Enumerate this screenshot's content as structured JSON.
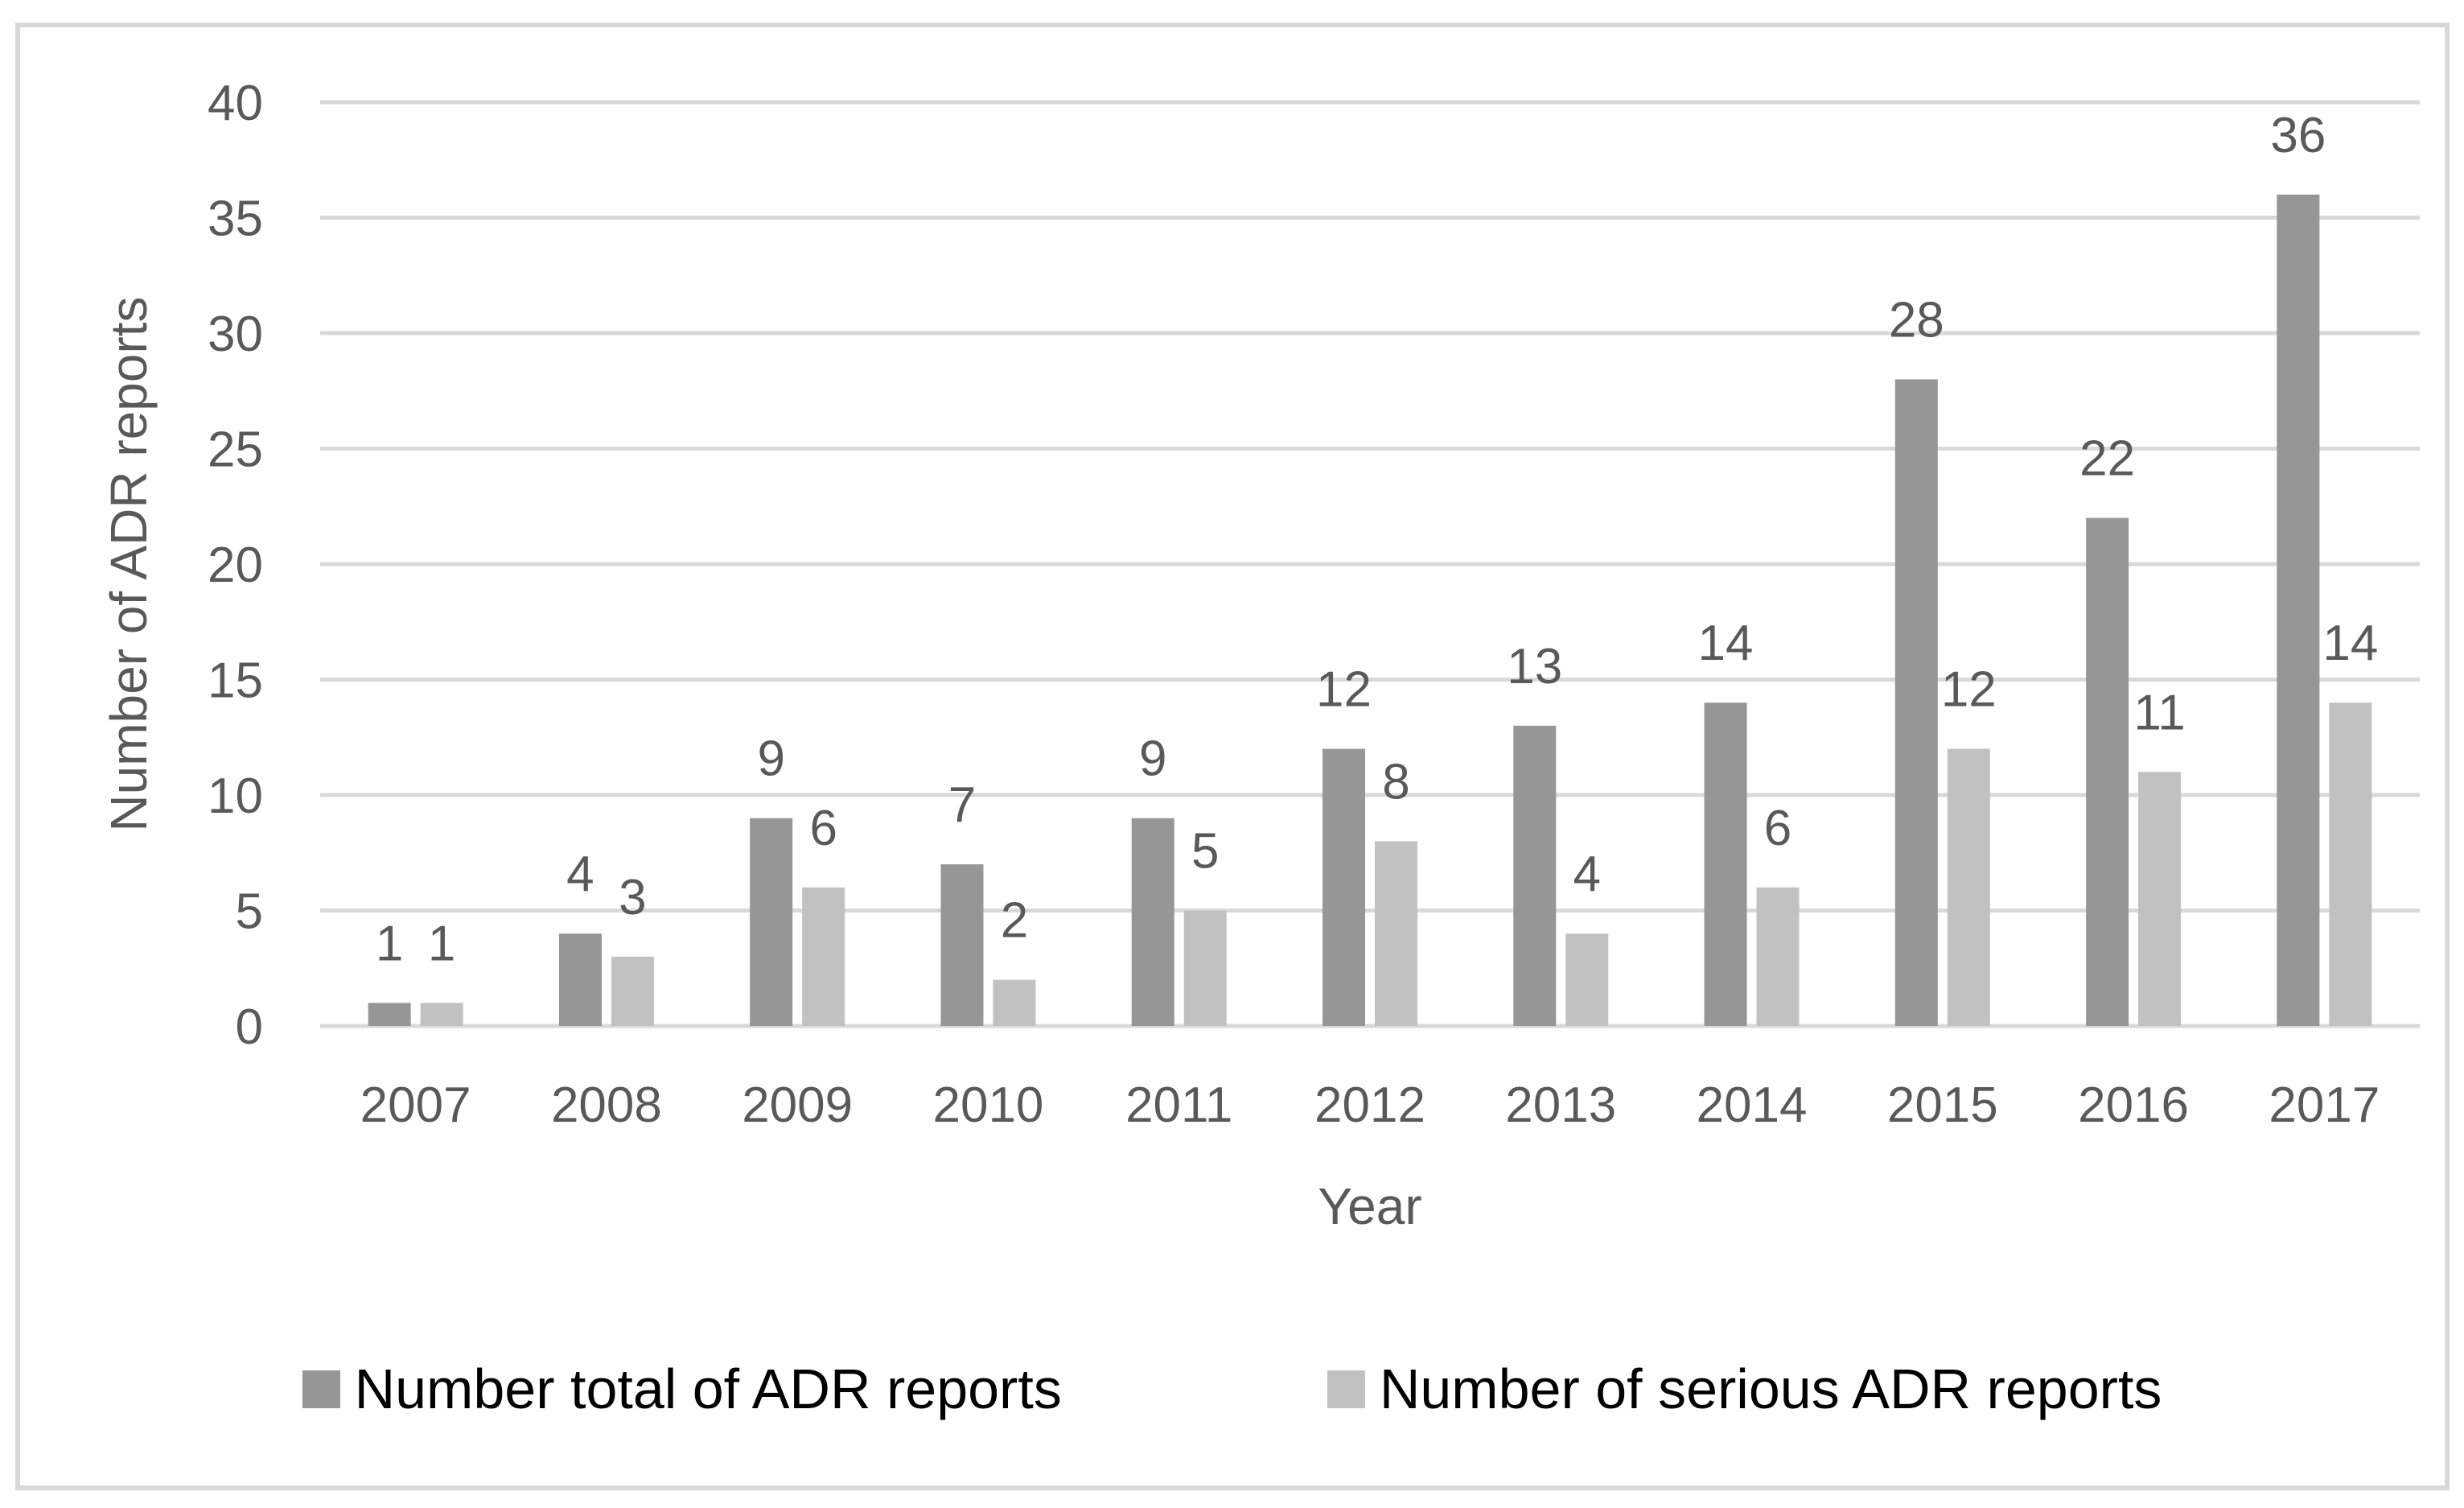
{
  "figure": {
    "background": "#ffffff",
    "border_color": "#d8d8d8"
  },
  "style": {
    "grid_color": "#d9d9d9",
    "axis_text_color": "#595959",
    "legend_text_color": "#000000"
  },
  "chart_data": {
    "type": "bar",
    "title": "",
    "xlabel": "Year",
    "ylabel": "Number of ADR reports",
    "categories": [
      "2007",
      "2008",
      "2009",
      "2010",
      "2011",
      "2012",
      "2013",
      "2014",
      "2015",
      "2016",
      "2017"
    ],
    "series": [
      {
        "name": "Number total of ADR reports",
        "color": "#969696",
        "values": [
          1,
          4,
          9,
          7,
          9,
          12,
          13,
          14,
          28,
          22,
          36
        ]
      },
      {
        "name": "Number of serious ADR reports",
        "color": "#c1c1c1",
        "values": [
          1,
          3,
          6,
          2,
          5,
          8,
          4,
          6,
          12,
          11,
          14
        ]
      }
    ],
    "ylim": [
      0,
      40
    ],
    "ytick_step": 5,
    "yticks": [
      0,
      5,
      10,
      15,
      20,
      25,
      30,
      35,
      40
    ],
    "grid": true,
    "data_labels": true,
    "legend_position": "bottom"
  }
}
